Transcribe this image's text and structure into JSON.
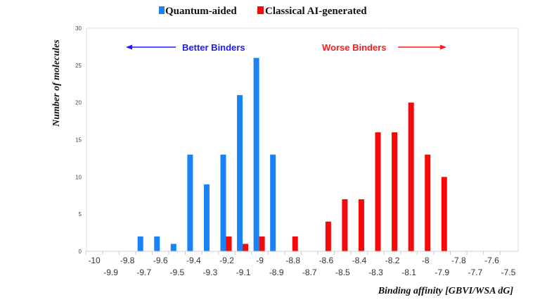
{
  "chart_data": {
    "type": "bar",
    "xlabel": "Binding affinity [GBVI/WSA dG]",
    "ylabel": "Number of molecules",
    "ylim": [
      0,
      30
    ],
    "yticks": [
      "0",
      "5",
      "10",
      "15",
      "20",
      "25",
      "30"
    ],
    "categories": [
      "-10",
      "-9.9",
      "-9.8",
      "-9.7",
      "-9.6",
      "-9.5",
      "-9.4",
      "-9.3",
      "-9.2",
      "-9.1",
      "-9",
      "-8.9",
      "-8.8",
      "-8.7",
      "-8.6",
      "-8.5",
      "-8.4",
      "-8.3",
      "-8.2",
      "-8.1",
      "-8",
      "-7.9",
      "-7.8",
      "-7.7",
      "-7.6",
      "-7.5"
    ],
    "series": [
      {
        "name": "Quantum-aided",
        "color": "#1a82f7",
        "values": [
          0,
          0,
          0,
          2,
          2,
          1,
          13,
          9,
          13,
          21,
          26,
          13,
          0,
          0,
          0,
          0,
          0,
          0,
          0,
          0,
          0,
          0,
          0,
          0,
          0,
          0
        ]
      },
      {
        "name": "Classical AI-generated",
        "color": "#f50a0a",
        "values": [
          0,
          0,
          0,
          0,
          0,
          0,
          0,
          0,
          2,
          1,
          2,
          0,
          2,
          0,
          4,
          7,
          7,
          16,
          16,
          20,
          13,
          10,
          0,
          0,
          0,
          0
        ]
      }
    ],
    "legend": "top",
    "grid": false,
    "annotations": [
      {
        "text": "Better Binders",
        "color": "#1a1aff",
        "arrow": "left"
      },
      {
        "text": "Worse Binders",
        "color": "#ff1a1a",
        "arrow": "right"
      }
    ]
  }
}
